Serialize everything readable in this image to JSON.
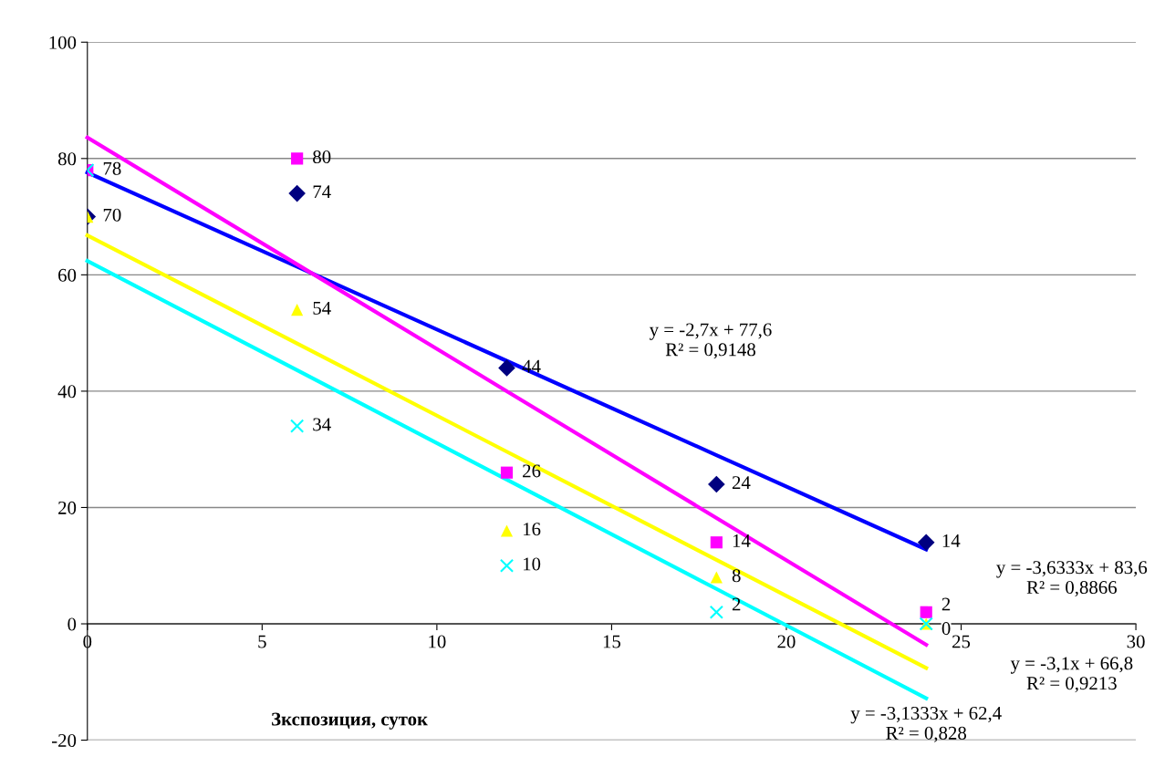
{
  "chart_data": {
    "type": "scatter",
    "xlabel": "Зкспозиция, суток",
    "xlim": [
      0,
      30
    ],
    "ylim": [
      -20,
      100
    ],
    "xticks": [
      0,
      5,
      10,
      15,
      20,
      25,
      30
    ],
    "yticks": [
      -20,
      0,
      20,
      40,
      60,
      80,
      100
    ],
    "grid": "y",
    "x": [
      0,
      6,
      12,
      18,
      24
    ],
    "series": [
      {
        "color": "#000080",
        "marker": "diamond",
        "values": [
          70,
          74,
          44,
          24,
          14
        ],
        "value_labels": [
          "70",
          "74",
          "44",
          "24",
          "14"
        ]
      },
      {
        "color": "#ff00ff",
        "marker": "square",
        "values": [
          78,
          80,
          26,
          14,
          2
        ],
        "value_labels": [
          "78",
          "80",
          "26",
          "14",
          "2"
        ]
      },
      {
        "color": "#ffff00",
        "marker": "triangle",
        "values": [
          70,
          54,
          16,
          8,
          0
        ],
        "value_labels": [
          null,
          "54",
          "16",
          "8",
          "0"
        ]
      },
      {
        "color": "#00ffff",
        "marker": "cross",
        "values": [
          78,
          34,
          10,
          2,
          0
        ],
        "value_labels": [
          null,
          "34",
          "10",
          "2",
          null
        ]
      },
      {
        "type": "line",
        "color": "#0000ff",
        "values": [
          77.6,
          61.4,
          45.2,
          29.0,
          12.8
        ]
      },
      {
        "type": "line",
        "color": "#ff00ff",
        "values": [
          83.6,
          61.8,
          40.0,
          18.2,
          -3.6
        ]
      },
      {
        "type": "line",
        "color": "#ffff00",
        "values": [
          66.8,
          48.2,
          29.6,
          11.0,
          -7.6
        ]
      },
      {
        "type": "line",
        "color": "#00ffff",
        "values": [
          62.4,
          43.6,
          24.8,
          6.0,
          -12.8
        ]
      }
    ],
    "annotations": [
      "y = -2,7x + 77,6\nR² = 0,9148",
      "y = -3,6333x + 83,6\nR² = 0,8866",
      "y = -3,1x + 66,8\nR² = 0,9213",
      "y = -3,1333x + 62,4\nR² = 0,828"
    ]
  }
}
